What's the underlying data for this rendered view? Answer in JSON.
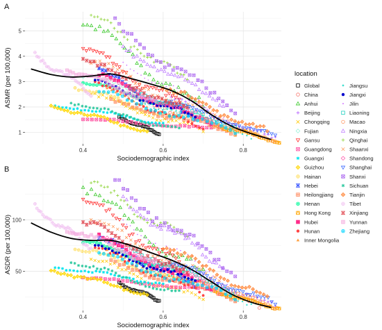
{
  "chart_data": [
    {
      "panel": "A",
      "type": "scatter",
      "xlabel": "Sociodemographic index",
      "ylabel": "ASMR (per 100,000)",
      "xlim": [
        0.255,
        0.895
      ],
      "ylim": [
        0.55,
        5.75
      ],
      "xticks": [
        0.4,
        0.6,
        0.8
      ],
      "yticks": [
        1,
        2,
        3,
        4,
        5
      ],
      "grid": true,
      "smooth_fit": {
        "x": [
          0.27,
          0.32,
          0.37,
          0.42,
          0.47,
          0.52,
          0.57,
          0.62,
          0.67,
          0.72,
          0.77,
          0.82,
          0.87
        ],
        "y": [
          3.5,
          3.28,
          3.18,
          3.22,
          3.3,
          3.12,
          2.9,
          2.65,
          2.25,
          1.7,
          1.25,
          0.95,
          0.72
        ]
      },
      "series": [
        {
          "name": "Global",
          "x0": 0.49,
          "x1": 0.59,
          "y0": 1.6,
          "y1": 0.95
        },
        {
          "name": "China",
          "x0": 0.46,
          "x1": 0.84,
          "y0": 2.7,
          "y1": 0.9
        },
        {
          "name": "Anhui",
          "x0": 0.4,
          "x1": 0.7,
          "y0": 5.4,
          "y1": 1.9
        },
        {
          "name": "Beijing",
          "x0": 0.62,
          "x1": 0.88,
          "y0": 2.4,
          "y1": 0.7
        },
        {
          "name": "Chongqing",
          "x0": 0.42,
          "x1": 0.7,
          "y0": 2.5,
          "y1": 1.0
        },
        {
          "name": "Fujian",
          "x0": 0.4,
          "x1": 0.72,
          "y0": 3.3,
          "y1": 1.3
        },
        {
          "name": "Gansu",
          "x0": 0.4,
          "x1": 0.64,
          "y0": 4.4,
          "y1": 2.1
        },
        {
          "name": "Guangdong",
          "x0": 0.4,
          "x1": 0.72,
          "y0": 1.55,
          "y1": 1.15
        },
        {
          "name": "Guangxi",
          "x0": 0.33,
          "x1": 0.6,
          "y0": 2.1,
          "y1": 1.35
        },
        {
          "name": "Guizhou",
          "x0": 0.32,
          "x1": 0.56,
          "y0": 2.05,
          "y1": 1.05
        },
        {
          "name": "Hainan",
          "x0": 0.38,
          "x1": 0.64,
          "y0": 2.8,
          "y1": 1.5
        },
        {
          "name": "Hebei",
          "x0": 0.44,
          "x1": 0.68,
          "y0": 3.4,
          "y1": 1.5
        },
        {
          "name": "Heilongjiang",
          "x0": 0.47,
          "x1": 0.78,
          "y0": 2.2,
          "y1": 1.0
        },
        {
          "name": "Henan",
          "x0": 0.4,
          "x1": 0.65,
          "y0": 3.0,
          "y1": 1.9
        },
        {
          "name": "Hong Kong",
          "x0": 0.73,
          "x1": 0.89,
          "y0": 1.3,
          "y1": 0.62
        },
        {
          "name": "Hubei",
          "x0": 0.44,
          "x1": 0.72,
          "y0": 3.2,
          "y1": 1.3
        },
        {
          "name": "Hunan",
          "x0": 0.43,
          "x1": 0.7,
          "y0": 2.9,
          "y1": 1.1
        },
        {
          "name": "Inner Mongolia",
          "x0": 0.46,
          "x1": 0.78,
          "y0": 2.6,
          "y1": 1.0
        },
        {
          "name": "Jiangsu",
          "x0": 0.5,
          "x1": 0.82,
          "y0": 2.5,
          "y1": 0.9
        },
        {
          "name": "Jiangxi",
          "x0": 0.43,
          "x1": 0.68,
          "y0": 3.0,
          "y1": 1.6
        },
        {
          "name": "Jilin",
          "x0": 0.5,
          "x1": 0.76,
          "y0": 3.7,
          "y1": 1.6
        },
        {
          "name": "Liaoning",
          "x0": 0.52,
          "x1": 0.78,
          "y0": 2.7,
          "y1": 1.2
        },
        {
          "name": "Macao",
          "x0": 0.7,
          "x1": 0.88,
          "y0": 1.5,
          "y1": 0.7
        },
        {
          "name": "Ningxia",
          "x0": 0.5,
          "x1": 0.75,
          "y0": 4.3,
          "y1": 2.2
        },
        {
          "name": "Qinghai",
          "x0": 0.42,
          "x1": 0.66,
          "y0": 5.6,
          "y1": 3.0
        },
        {
          "name": "Shaanxi",
          "x0": 0.42,
          "x1": 0.74,
          "y0": 3.8,
          "y1": 1.5
        },
        {
          "name": "Shandong",
          "x0": 0.46,
          "x1": 0.74,
          "y0": 3.1,
          "y1": 1.3
        },
        {
          "name": "Shanghai",
          "x0": 0.62,
          "x1": 0.88,
          "y0": 2.2,
          "y1": 0.8
        },
        {
          "name": "Shanxi",
          "x0": 0.48,
          "x1": 0.78,
          "y0": 5.2,
          "y1": 1.9
        },
        {
          "name": "Sichuan",
          "x0": 0.37,
          "x1": 0.64,
          "y0": 2.2,
          "y1": 1.1
        },
        {
          "name": "Tianjin",
          "x0": 0.6,
          "x1": 0.86,
          "y0": 2.8,
          "y1": 1.0
        },
        {
          "name": "Tibet",
          "x0": 0.28,
          "x1": 0.42,
          "y0": 4.0,
          "y1": 2.6
        },
        {
          "name": "Xinjiang",
          "x0": 0.4,
          "x1": 0.66,
          "y0": 3.9,
          "y1": 1.8
        },
        {
          "name": "Yunnan",
          "x0": 0.36,
          "x1": 0.58,
          "y0": 3.5,
          "y1": 2.2
        },
        {
          "name": "Zhejiang",
          "x0": 0.44,
          "x1": 0.78,
          "y0": 2.6,
          "y1": 1.0
        }
      ]
    },
    {
      "panel": "B",
      "type": "scatter",
      "xlabel": "Sociodemographic index",
      "ylabel": "ASDR (per 100,000)",
      "xlim": [
        0.255,
        0.895
      ],
      "ylim": [
        12,
        140
      ],
      "xticks": [
        0.4,
        0.6,
        0.8
      ],
      "yticks": [
        50,
        100
      ],
      "grid": true,
      "smooth_fit": {
        "x": [
          0.27,
          0.32,
          0.37,
          0.42,
          0.47,
          0.52,
          0.57,
          0.62,
          0.67,
          0.72,
          0.77,
          0.82,
          0.87
        ],
        "y": [
          97,
          88,
          82,
          80,
          80,
          75,
          68,
          61,
          52,
          40,
          28,
          20,
          15
        ]
      },
      "series": [
        {
          "name": "Global",
          "x0": 0.49,
          "x1": 0.59,
          "y0": 38,
          "y1": 22
        },
        {
          "name": "China",
          "x0": 0.46,
          "x1": 0.84,
          "y0": 72,
          "y1": 18
        },
        {
          "name": "Anhui",
          "x0": 0.4,
          "x1": 0.7,
          "y0": 132,
          "y1": 45
        },
        {
          "name": "Beijing",
          "x0": 0.62,
          "x1": 0.88,
          "y0": 58,
          "y1": 15
        },
        {
          "name": "Chongqing",
          "x0": 0.42,
          "x1": 0.7,
          "y0": 62,
          "y1": 22
        },
        {
          "name": "Fujian",
          "x0": 0.4,
          "x1": 0.72,
          "y0": 80,
          "y1": 30
        },
        {
          "name": "Gansu",
          "x0": 0.4,
          "x1": 0.64,
          "y0": 122,
          "y1": 55
        },
        {
          "name": "Guangdong",
          "x0": 0.4,
          "x1": 0.72,
          "y0": 44,
          "y1": 32
        },
        {
          "name": "Guangxi",
          "x0": 0.33,
          "x1": 0.6,
          "y0": 55,
          "y1": 38
        },
        {
          "name": "Guizhou",
          "x0": 0.32,
          "x1": 0.56,
          "y0": 52,
          "y1": 28
        },
        {
          "name": "Hainan",
          "x0": 0.38,
          "x1": 0.64,
          "y0": 74,
          "y1": 40
        },
        {
          "name": "Hebei",
          "x0": 0.44,
          "x1": 0.68,
          "y0": 82,
          "y1": 36
        },
        {
          "name": "Heilongjiang",
          "x0": 0.47,
          "x1": 0.78,
          "y0": 58,
          "y1": 24
        },
        {
          "name": "Henan",
          "x0": 0.4,
          "x1": 0.65,
          "y0": 80,
          "y1": 48
        },
        {
          "name": "Hong Kong",
          "x0": 0.73,
          "x1": 0.89,
          "y0": 30,
          "y1": 14
        },
        {
          "name": "Hubei",
          "x0": 0.44,
          "x1": 0.72,
          "y0": 82,
          "y1": 32
        },
        {
          "name": "Hunan",
          "x0": 0.43,
          "x1": 0.7,
          "y0": 72,
          "y1": 28
        },
        {
          "name": "Inner Mongolia",
          "x0": 0.46,
          "x1": 0.78,
          "y0": 68,
          "y1": 24
        },
        {
          "name": "Jiangsu",
          "x0": 0.5,
          "x1": 0.82,
          "y0": 64,
          "y1": 20
        },
        {
          "name": "Jiangxi",
          "x0": 0.43,
          "x1": 0.68,
          "y0": 74,
          "y1": 40
        },
        {
          "name": "Jilin",
          "x0": 0.5,
          "x1": 0.76,
          "y0": 96,
          "y1": 40
        },
        {
          "name": "Liaoning",
          "x0": 0.52,
          "x1": 0.78,
          "y0": 72,
          "y1": 30
        },
        {
          "name": "Macao",
          "x0": 0.7,
          "x1": 0.88,
          "y0": 38,
          "y1": 16
        },
        {
          "name": "Ningxia",
          "x0": 0.5,
          "x1": 0.75,
          "y0": 118,
          "y1": 56
        },
        {
          "name": "Qinghai",
          "x0": 0.42,
          "x1": 0.66,
          "y0": 136,
          "y1": 80
        },
        {
          "name": "Shaanxi",
          "x0": 0.42,
          "x1": 0.74,
          "y0": 100,
          "y1": 38
        },
        {
          "name": "Shandong",
          "x0": 0.46,
          "x1": 0.74,
          "y0": 80,
          "y1": 32
        },
        {
          "name": "Shanghai",
          "x0": 0.62,
          "x1": 0.88,
          "y0": 58,
          "y1": 18
        },
        {
          "name": "Shanxi",
          "x0": 0.48,
          "x1": 0.78,
          "y0": 134,
          "y1": 48
        },
        {
          "name": "Sichuan",
          "x0": 0.37,
          "x1": 0.64,
          "y0": 60,
          "y1": 28
        },
        {
          "name": "Tianjin",
          "x0": 0.6,
          "x1": 0.86,
          "y0": 74,
          "y1": 24
        },
        {
          "name": "Tibet",
          "x0": 0.28,
          "x1": 0.42,
          "y0": 112,
          "y1": 74
        },
        {
          "name": "Xinjiang",
          "x0": 0.4,
          "x1": 0.66,
          "y0": 100,
          "y1": 46
        },
        {
          "name": "Yunnan",
          "x0": 0.36,
          "x1": 0.58,
          "y0": 92,
          "y1": 58
        },
        {
          "name": "Zhejiang",
          "x0": 0.44,
          "x1": 0.78,
          "y0": 66,
          "y1": 24
        }
      ]
    }
  ],
  "legend": {
    "title": "location",
    "items": [
      {
        "name": "Global",
        "color": "#000000",
        "shape": "square"
      },
      {
        "name": "China",
        "color": "#F8766D",
        "shape": "circle"
      },
      {
        "name": "Anhui",
        "color": "#3ACA2A",
        "shape": "triangle-up"
      },
      {
        "name": "Beijing",
        "color": "#B55FFF",
        "shape": "plus"
      },
      {
        "name": "Chongqing",
        "color": "#FFC800",
        "shape": "cross"
      },
      {
        "name": "Fujian",
        "color": "#9AF0D8",
        "shape": "diamond"
      },
      {
        "name": "Gansu",
        "color": "#FF3030",
        "shape": "triangle-down"
      },
      {
        "name": "Guangdong",
        "color": "#FF4FA0",
        "shape": "square-cross"
      },
      {
        "name": "Guangxi",
        "color": "#00E5EE",
        "shape": "star"
      },
      {
        "name": "Guizhou",
        "color": "#FFD700",
        "shape": "diamond-plus"
      },
      {
        "name": "Hainan",
        "color": "#FFE066",
        "shape": "circle-plus"
      },
      {
        "name": "Hebei",
        "color": "#1F3FFF",
        "shape": "hourglass"
      },
      {
        "name": "Heilongjiang",
        "color": "#FF7F50",
        "shape": "square-plus"
      },
      {
        "name": "Henan",
        "color": "#00FA9A",
        "shape": "circle-cross"
      },
      {
        "name": "Hong Kong",
        "color": "#FFA500",
        "shape": "square-triangle"
      },
      {
        "name": "Hubei",
        "color": "#FF2D8A",
        "shape": "square-filled"
      },
      {
        "name": "Hunan",
        "color": "#FF4444",
        "shape": "dot"
      },
      {
        "name": "Inner Mongolia",
        "color": "#FFA040",
        "shape": "triangle-filled"
      },
      {
        "name": "Jiangsu",
        "color": "#40E0D0",
        "shape": "small-dot"
      },
      {
        "name": "Jiangxi",
        "color": "#0000CD",
        "shape": "dot"
      },
      {
        "name": "Jilin",
        "color": "#CC66FF",
        "shape": "tiny-dot"
      },
      {
        "name": "Liaoning",
        "color": "#20D0C0",
        "shape": "square"
      },
      {
        "name": "Macao",
        "color": "#FF9966",
        "shape": "circle"
      },
      {
        "name": "Ningxia",
        "color": "#C080FF",
        "shape": "triangle-up"
      },
      {
        "name": "Qinghai",
        "color": "#8FD43A",
        "shape": "plus"
      },
      {
        "name": "Shaanxi",
        "color": "#FF9A5A",
        "shape": "cross"
      },
      {
        "name": "Shandong",
        "color": "#FF66B2",
        "shape": "diamond"
      },
      {
        "name": "Shanghai",
        "color": "#3D6BFF",
        "shape": "triangle-down"
      },
      {
        "name": "Shanxi",
        "color": "#B070F0",
        "shape": "square-cross"
      },
      {
        "name": "Sichuan",
        "color": "#2EC9A0",
        "shape": "star"
      },
      {
        "name": "Tianjin",
        "color": "#FF8C42",
        "shape": "diamond-plus"
      },
      {
        "name": "Tibet",
        "color": "#F2C6F2",
        "shape": "circle-plus"
      },
      {
        "name": "Xinjiang",
        "color": "#E0454E",
        "shape": "hourglass"
      },
      {
        "name": "Yunnan",
        "color": "#F4A8DC",
        "shape": "square-plus"
      },
      {
        "name": "Zhejiang",
        "color": "#00D5FF",
        "shape": "circle-cross"
      }
    ]
  }
}
